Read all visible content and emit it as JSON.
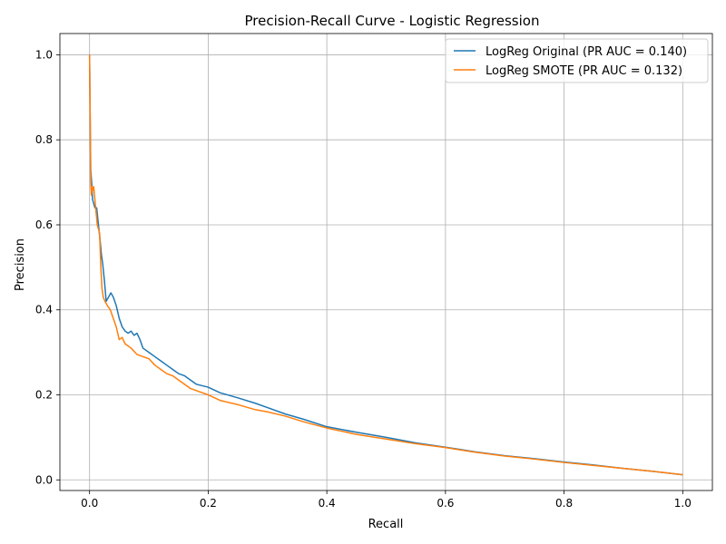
{
  "chart_data": {
    "type": "line",
    "title": "Precision-Recall Curve - Logistic Regression",
    "xlabel": "Recall",
    "ylabel": "Precision",
    "xlim": [
      -0.05,
      1.05
    ],
    "ylim": [
      -0.025,
      1.05
    ],
    "xticks": [
      0.0,
      0.2,
      0.4,
      0.6,
      0.8,
      1.0
    ],
    "yticks": [
      0.0,
      0.2,
      0.4,
      0.6,
      0.8,
      1.0
    ],
    "tick_labels_x": [
      "0.0",
      "0.2",
      "0.4",
      "0.6",
      "0.8",
      "1.0"
    ],
    "tick_labels_y": [
      "0.0",
      "0.2",
      "0.4",
      "0.6",
      "0.8",
      "1.0"
    ],
    "grid": true,
    "legend_position": "top-right",
    "series": [
      {
        "name": "LogReg Original (PR AUC = 0.140)",
        "color": "#1f77b4",
        "x": [
          0.0,
          0.001,
          0.002,
          0.003,
          0.004,
          0.005,
          0.007,
          0.009,
          0.012,
          0.015,
          0.018,
          0.02,
          0.022,
          0.025,
          0.028,
          0.032,
          0.036,
          0.04,
          0.045,
          0.05,
          0.055,
          0.06,
          0.065,
          0.07,
          0.075,
          0.08,
          0.085,
          0.09,
          0.1,
          0.11,
          0.12,
          0.13,
          0.14,
          0.15,
          0.16,
          0.17,
          0.18,
          0.2,
          0.22,
          0.25,
          0.28,
          0.3,
          0.33,
          0.36,
          0.4,
          0.45,
          0.5,
          0.55,
          0.6,
          0.65,
          0.7,
          0.75,
          0.8,
          0.85,
          0.9,
          0.95,
          1.0
        ],
        "y": [
          1.0,
          0.85,
          0.73,
          0.71,
          0.69,
          0.66,
          0.65,
          0.64,
          0.64,
          0.6,
          0.56,
          0.53,
          0.51,
          0.47,
          0.42,
          0.43,
          0.44,
          0.43,
          0.41,
          0.38,
          0.36,
          0.35,
          0.345,
          0.35,
          0.34,
          0.345,
          0.33,
          0.31,
          0.3,
          0.29,
          0.28,
          0.27,
          0.26,
          0.25,
          0.245,
          0.235,
          0.225,
          0.218,
          0.205,
          0.193,
          0.18,
          0.17,
          0.155,
          0.143,
          0.125,
          0.112,
          0.1,
          0.087,
          0.077,
          0.066,
          0.057,
          0.05,
          0.042,
          0.035,
          0.027,
          0.02,
          0.012
        ]
      },
      {
        "name": "LogReg SMOTE (PR AUC = 0.132)",
        "color": "#ff7f0e",
        "x": [
          0.0,
          0.001,
          0.002,
          0.003,
          0.004,
          0.005,
          0.007,
          0.009,
          0.011,
          0.013,
          0.015,
          0.017,
          0.019,
          0.021,
          0.023,
          0.026,
          0.03,
          0.035,
          0.04,
          0.045,
          0.05,
          0.055,
          0.06,
          0.07,
          0.08,
          0.09,
          0.1,
          0.11,
          0.12,
          0.13,
          0.14,
          0.15,
          0.16,
          0.17,
          0.18,
          0.2,
          0.22,
          0.25,
          0.28,
          0.3,
          0.33,
          0.36,
          0.4,
          0.45,
          0.5,
          0.55,
          0.6,
          0.65,
          0.7,
          0.75,
          0.8,
          0.85,
          0.9,
          0.95,
          1.0
        ],
        "y": [
          1.0,
          0.86,
          0.7,
          0.67,
          0.69,
          0.68,
          0.69,
          0.66,
          0.63,
          0.6,
          0.59,
          0.58,
          0.5,
          0.45,
          0.43,
          0.42,
          0.41,
          0.4,
          0.38,
          0.36,
          0.33,
          0.335,
          0.32,
          0.31,
          0.295,
          0.29,
          0.285,
          0.27,
          0.26,
          0.25,
          0.245,
          0.235,
          0.225,
          0.215,
          0.21,
          0.2,
          0.187,
          0.177,
          0.165,
          0.16,
          0.15,
          0.137,
          0.122,
          0.107,
          0.096,
          0.085,
          0.076,
          0.065,
          0.056,
          0.049,
          0.041,
          0.034,
          0.027,
          0.02,
          0.012
        ]
      }
    ]
  }
}
